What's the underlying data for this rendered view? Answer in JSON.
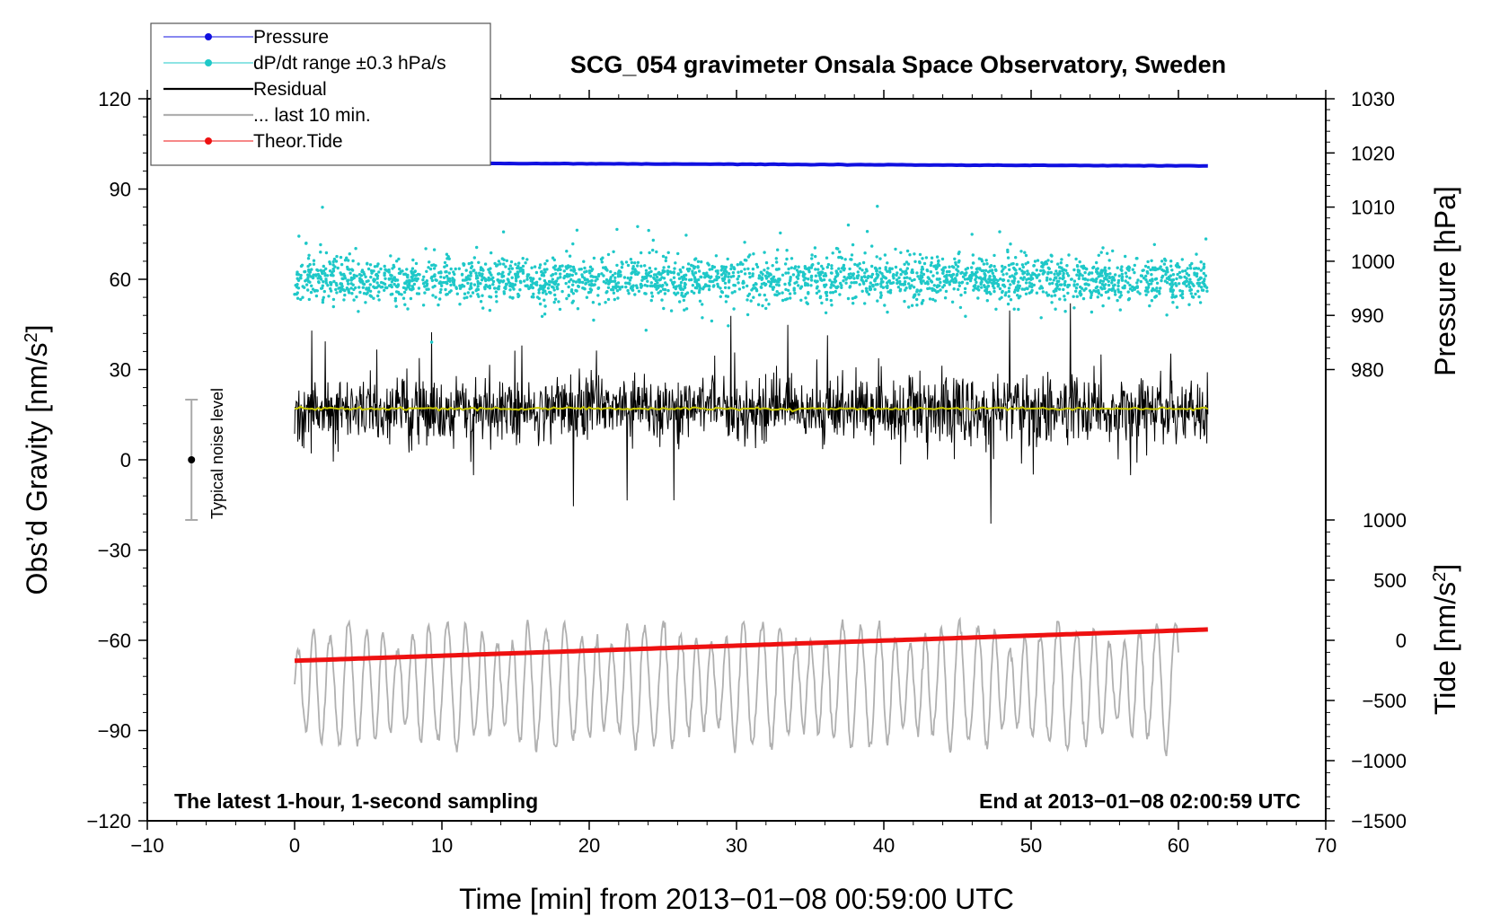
{
  "chart_data": {
    "type": "line",
    "title": "SCG_054 gravimeter Onsala Space Observatory, Sweden",
    "xlabel": "Time [min] from 2013−01−08 00:59:00 UTC",
    "ylabel_left": "Obs’d Gravity [nm/s",
    "ylabel_left_sup": "2",
    "ylabel_left_end": "]",
    "ylabel_right_pressure": "Pressure [hPa]",
    "ylabel_right_tide": "Tide [nm/s",
    "ylabel_right_tide_sup": "2",
    "ylabel_right_tide_end": "]",
    "xlim": [
      -10,
      70
    ],
    "ylim_left": [
      -120,
      120
    ],
    "ylim_pressure_axis": [
      980,
      1030
    ],
    "ylim_tide_axis": [
      -1500,
      1000
    ],
    "x_ticks": [
      "−10",
      "0",
      "10",
      "20",
      "30",
      "40",
      "50",
      "60",
      "70"
    ],
    "y_left_ticks": [
      "−120",
      "−90",
      "−60",
      "−30",
      "0",
      "30",
      "60",
      "90",
      "120"
    ],
    "pressure_ticks": [
      "980",
      "990",
      "1000",
      "1010",
      "1020",
      "1030"
    ],
    "tide_ticks": [
      "−1500",
      "−1000",
      "−500",
      "0",
      "500",
      "1000"
    ],
    "legend": [
      {
        "label": "Pressure",
        "color": "#1010e0",
        "style": "line-dot"
      },
      {
        "label": "dP/dt range ±0.3 hPa/s",
        "color": "#1ec8c8",
        "style": "line-dot"
      },
      {
        "label": "Residual",
        "color": "#000000",
        "style": "line"
      },
      {
        "label": "... last 10 min.",
        "color": "#b0b0b0",
        "style": "line"
      },
      {
        "label": "Theor.Tide",
        "color": "#ee1111",
        "style": "line-dot"
      }
    ],
    "annotation_left": "The latest 1-hour, 1-second sampling",
    "annotation_right": "End at 2013−01−08 02:00:59 UTC",
    "noise_label": "Typical noise level",
    "noise_level": {
      "x": -7,
      "center": 0,
      "half_range": 20
    },
    "series": [
      {
        "name": "Pressure",
        "color": "#1010e0",
        "axis": "pressure_hPa",
        "x_range": [
          0,
          62
        ],
        "start": 1018.2,
        "end": 1017.6
      },
      {
        "name": "dP/dt range ±0.3 hPa/s",
        "color": "#1ec8c8",
        "axis": "left",
        "x_range": [
          0,
          62
        ],
        "center": 60,
        "spread": 5,
        "max": 92,
        "min": 38
      },
      {
        "name": "Residual",
        "color": "#000000",
        "axis": "left",
        "x_range": [
          0,
          62
        ],
        "center": 17,
        "min": -26,
        "max": 52
      },
      {
        "name": "Residual mean",
        "color": "#c8c800",
        "axis": "left",
        "x_range": [
          0,
          62
        ],
        "value": 17
      },
      {
        "name": "... last 10 min.",
        "color": "#b0b0b0",
        "axis": "left",
        "x_range": [
          0,
          60
        ],
        "center": -75,
        "min": -107,
        "max": -41
      },
      {
        "name": "Theor.Tide",
        "color": "#ee1111",
        "axis": "tide_nm_s2",
        "x_range": [
          0,
          62
        ],
        "start": -170,
        "end": 90
      }
    ]
  }
}
